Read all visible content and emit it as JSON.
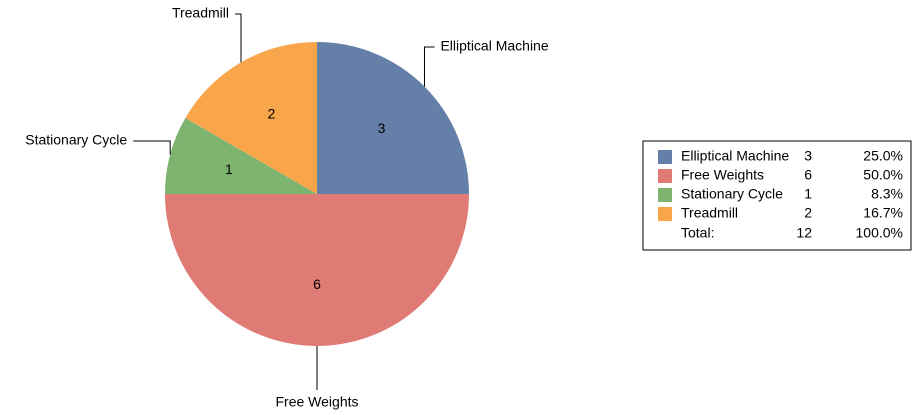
{
  "chart_data": {
    "type": "pie",
    "categories": [
      "Elliptical Machine",
      "Free Weights",
      "Stationary Cycle",
      "Treadmill"
    ],
    "values": [
      3,
      6,
      1,
      2
    ],
    "colors": [
      "#6480a8",
      "#e07a74",
      "#7db46f",
      "#f9a64b"
    ],
    "legend_percents": [
      "25.0%",
      "50.0%",
      "8.3%",
      "16.7%"
    ],
    "total_label": "Total:",
    "total": 12,
    "total_percent": "100.0%",
    "legend": "right"
  }
}
